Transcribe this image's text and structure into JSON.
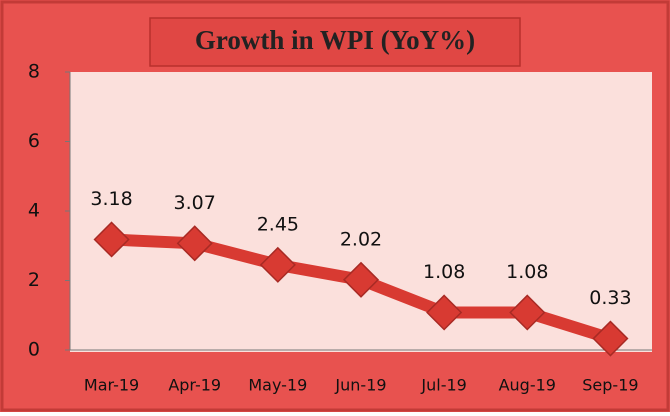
{
  "chart_data": {
    "type": "line",
    "title": "Growth in WPI (YoY%)",
    "categories": [
      "Mar-19",
      "Apr-19",
      "May-19",
      "Jun-19",
      "Jul-19",
      "Aug-19",
      "Sep-19"
    ],
    "series": [
      {
        "name": "Growth in WPI (YoY%)",
        "color": "#d83a32",
        "values": [
          3.18,
          3.07,
          2.45,
          2.02,
          1.08,
          1.08,
          0.33
        ]
      }
    ],
    "ylim": [
      0,
      8
    ],
    "yticks": [
      0,
      2,
      4,
      6,
      8
    ],
    "grid": false
  }
}
